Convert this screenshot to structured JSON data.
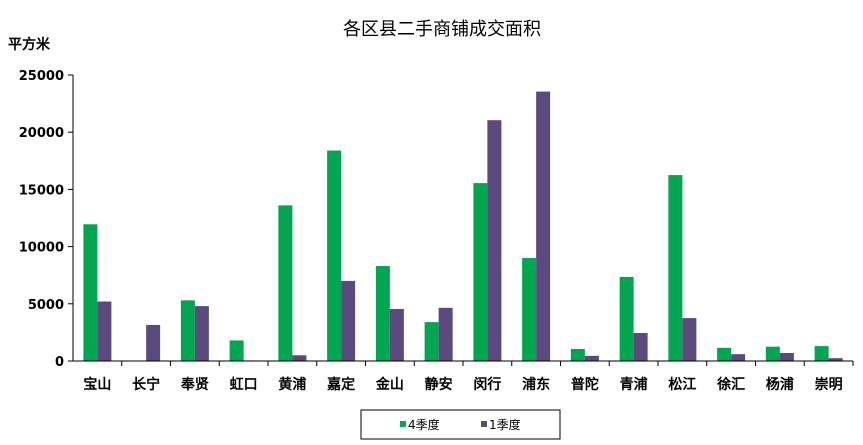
{
  "chart_data": {
    "type": "bar",
    "title": "各区县二手商铺成交面积",
    "ylabel": "平方米",
    "ylim": [
      0,
      25000
    ],
    "yticks": [
      0,
      5000,
      10000,
      15000,
      20000,
      25000
    ],
    "categories": [
      "宝山",
      "长宁",
      "奉贤",
      "虹口",
      "黄浦",
      "嘉定",
      "金山",
      "静安",
      "闵行",
      "浦东",
      "普陀",
      "青浦",
      "松江",
      "徐汇",
      "杨浦",
      "崇明"
    ],
    "series": [
      {
        "name": "4季度",
        "color": "#00a650",
        "values": [
          11950,
          0,
          5300,
          1800,
          13600,
          18400,
          8300,
          3400,
          15550,
          9000,
          1050,
          7350,
          16250,
          1150,
          1250,
          1300
        ]
      },
      {
        "name": "1季度",
        "color": "#5c4a7f",
        "values": [
          5200,
          3150,
          4800,
          50,
          500,
          7000,
          4550,
          4650,
          21050,
          23550,
          450,
          2450,
          3750,
          600,
          700,
          250
        ]
      }
    ],
    "grid": false,
    "legend": "bottom"
  }
}
